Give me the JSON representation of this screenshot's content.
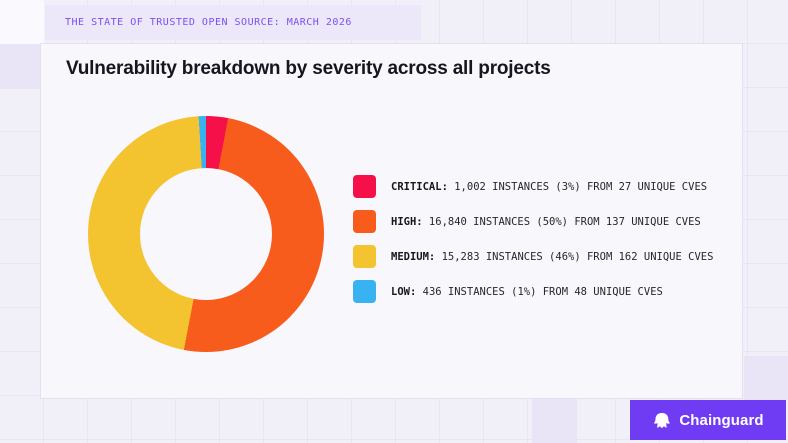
{
  "banner": {
    "text": "THE STATE OF TRUSTED OPEN SOURCE: MARCH 2026",
    "bg_color": "#ECE7F9",
    "text_color": "#7B50F0"
  },
  "card": {
    "title": "Vulnerability breakdown by severity across all projects"
  },
  "chart_data": {
    "type": "pie",
    "donut": true,
    "title": "Vulnerability breakdown by severity across all projects",
    "start_angle_deg": 0,
    "direction": "clockwise",
    "legend_position": "right",
    "segments": [
      {
        "label": "CRITICAL",
        "instances": 1002,
        "percent": 3,
        "unique_cves": 27,
        "color": "#F5104A"
      },
      {
        "label": "HIGH",
        "instances": 16840,
        "percent": 50,
        "unique_cves": 137,
        "color": "#F75C1D"
      },
      {
        "label": "MEDIUM",
        "instances": 15283,
        "percent": 46,
        "unique_cves": 162,
        "color": "#F4C330"
      },
      {
        "label": "LOW",
        "instances": 436,
        "percent": 1,
        "unique_cves": 48,
        "color": "#38B2F0"
      }
    ]
  },
  "legend": {
    "items": [
      {
        "label": "CRITICAL:",
        "detail": " 1,002 INSTANCES (3%) FROM 27 UNIQUE CVES",
        "color": "#F5104A"
      },
      {
        "label": "HIGH:",
        "detail": " 16,840 INSTANCES (50%) FROM 137 UNIQUE CVES",
        "color": "#F75C1D"
      },
      {
        "label": "MEDIUM:",
        "detail": " 15,283 INSTANCES (46%) FROM 162 UNIQUE CVES",
        "color": "#F4C330"
      },
      {
        "label": "LOW:",
        "detail": " 436 INSTANCES (1%) FROM 48 UNIQUE CVES",
        "color": "#38B2F0"
      }
    ]
  },
  "footer": {
    "brand": "Chainguard",
    "logo_icon": "chainguard-linky-icon",
    "button_color": "#6F3CF4"
  }
}
